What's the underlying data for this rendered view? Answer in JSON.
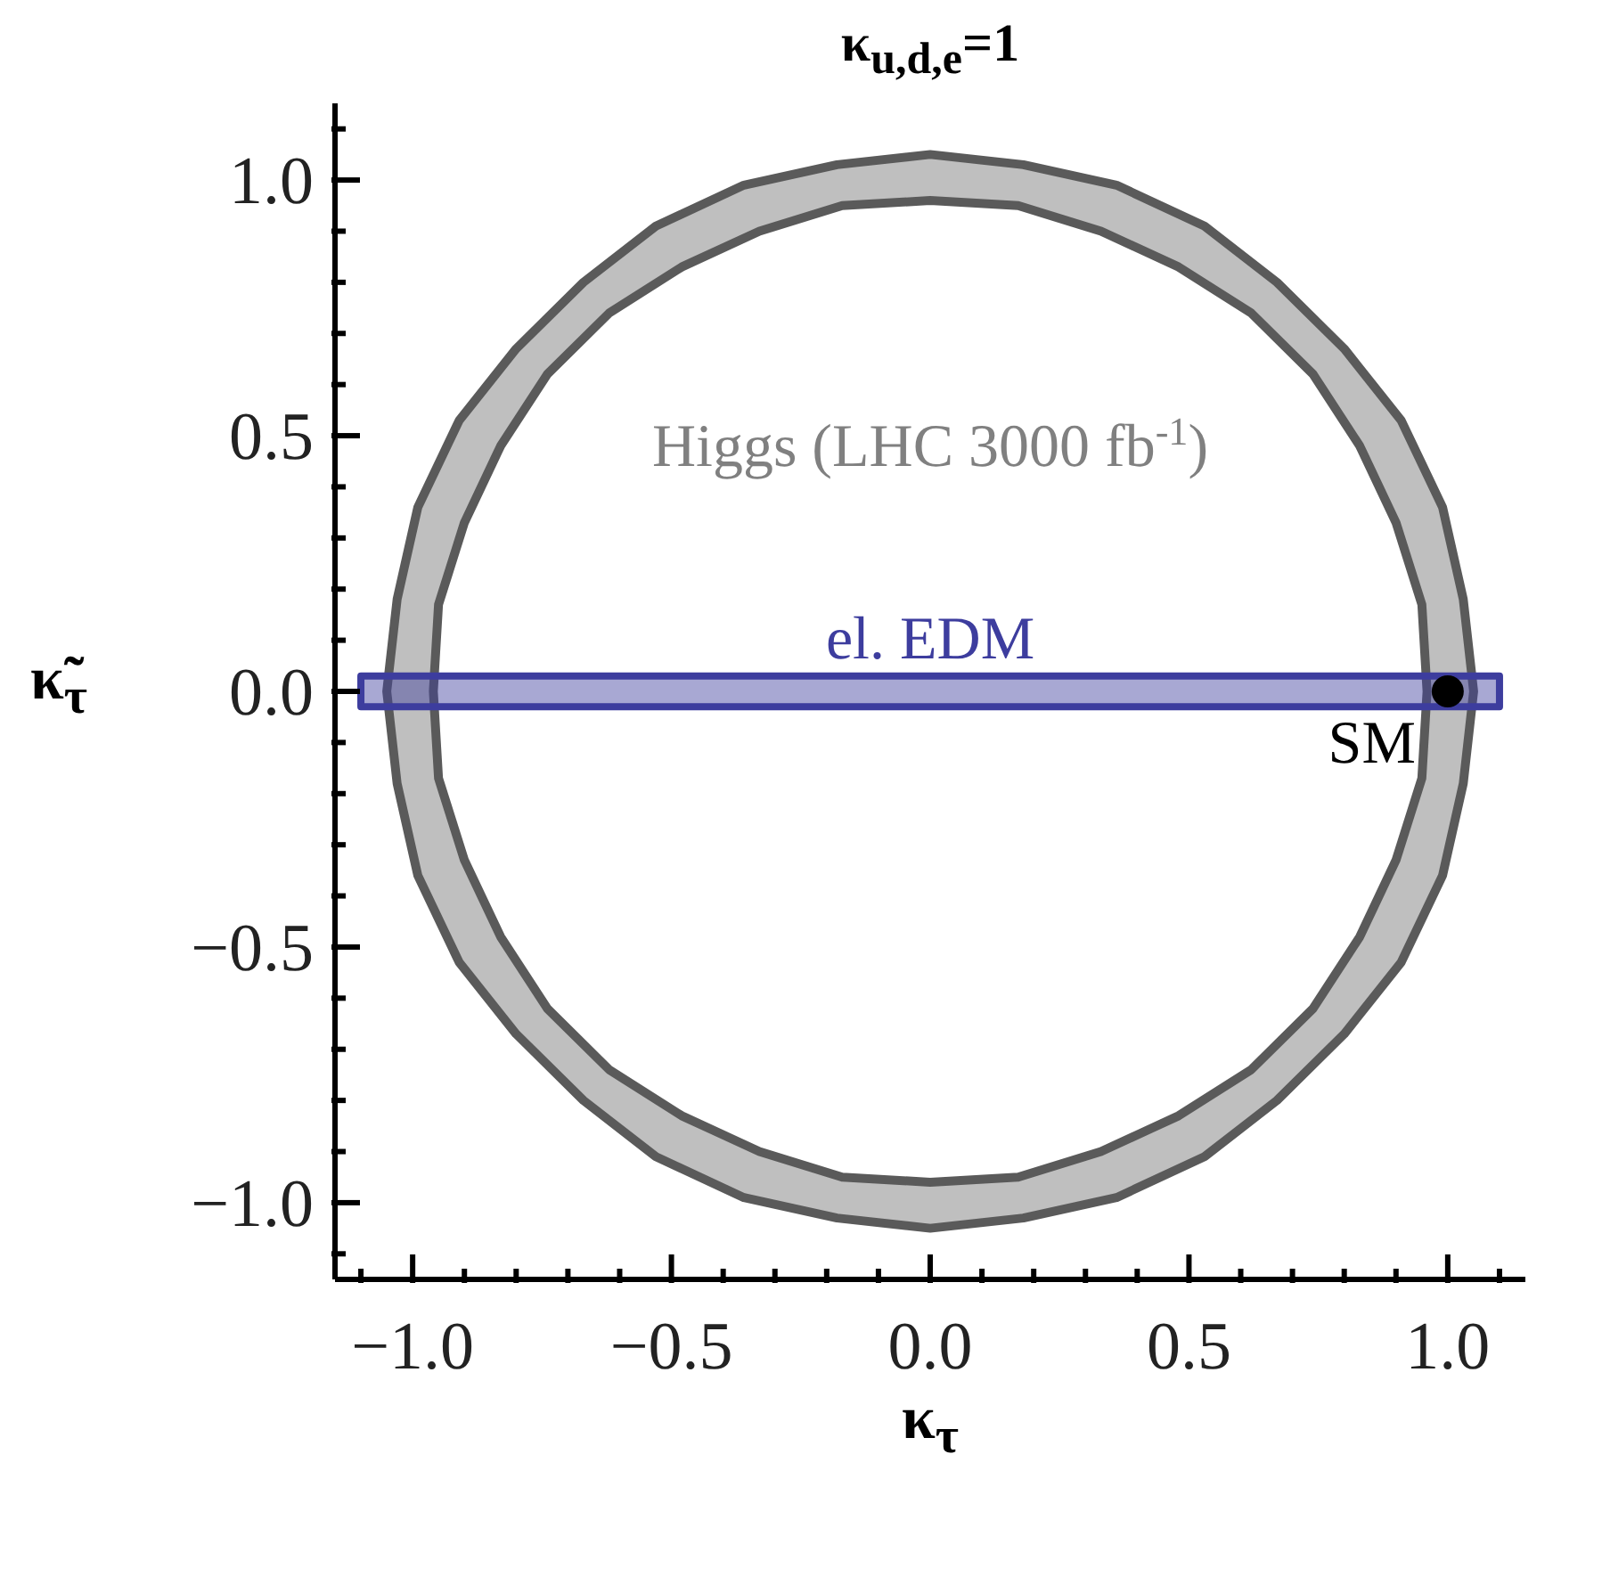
{
  "chart_data": {
    "type": "scatter",
    "title": "κ$_{u,d,e}$=1",
    "xlabel": "κ$_{τ}$",
    "ylabel": "κ̃$_{τ}$",
    "xlim": [
      -1.15,
      1.15
    ],
    "ylim": [
      -1.15,
      1.15
    ],
    "xticks": [
      {
        "value": -1.1,
        "label": null
      },
      {
        "value": -1.0,
        "label": "−1.0"
      },
      {
        "value": -0.9,
        "label": null
      },
      {
        "value": -0.8,
        "label": null
      },
      {
        "value": -0.7,
        "label": null
      },
      {
        "value": -0.6,
        "label": null
      },
      {
        "value": -0.5,
        "label": "−0.5"
      },
      {
        "value": -0.4,
        "label": null
      },
      {
        "value": -0.3,
        "label": null
      },
      {
        "value": -0.2,
        "label": null
      },
      {
        "value": -0.1,
        "label": null
      },
      {
        "value": 0,
        "label": "0.0"
      },
      {
        "value": 0.1,
        "label": null
      },
      {
        "value": 0.2,
        "label": null
      },
      {
        "value": 0.3,
        "label": null
      },
      {
        "value": 0.4,
        "label": null
      },
      {
        "value": 0.5,
        "label": "0.5"
      },
      {
        "value": 0.6,
        "label": null
      },
      {
        "value": 0.7,
        "label": null
      },
      {
        "value": 0.8,
        "label": null
      },
      {
        "value": 0.9,
        "label": null
      },
      {
        "value": 1.0,
        "label": "1.0"
      },
      {
        "value": 1.1,
        "label": null
      }
    ],
    "yticks": [
      {
        "value": -1.1,
        "label": null
      },
      {
        "value": -1.0,
        "label": "−1.0"
      },
      {
        "value": -0.9,
        "label": null
      },
      {
        "value": -0.8,
        "label": null
      },
      {
        "value": -0.7,
        "label": null
      },
      {
        "value": -0.6,
        "label": null
      },
      {
        "value": -0.5,
        "label": "−0.5"
      },
      {
        "value": -0.4,
        "label": null
      },
      {
        "value": -0.3,
        "label": null
      },
      {
        "value": -0.2,
        "label": null
      },
      {
        "value": -0.1,
        "label": null
      },
      {
        "value": 0,
        "label": "0.0"
      },
      {
        "value": 0.1,
        "label": null
      },
      {
        "value": 0.2,
        "label": null
      },
      {
        "value": 0.3,
        "label": null
      },
      {
        "value": 0.4,
        "label": null
      },
      {
        "value": 0.5,
        "label": "0.5"
      },
      {
        "value": 0.6,
        "label": null
      },
      {
        "value": 0.7,
        "label": null
      },
      {
        "value": 0.8,
        "label": null
      },
      {
        "value": 0.9,
        "label": null
      },
      {
        "value": 1.0,
        "label": "1.0"
      },
      {
        "value": 1.1,
        "label": null
      }
    ],
    "series": [
      {
        "type": "area",
        "name": "Higgs (LHC 3000 fb$^{-1}$)",
        "color": "#bfbfbf",
        "x": [
          1.05,
          1.03,
          0.99,
          0.91,
          0.8,
          0.67,
          0.53,
          0.36,
          0.18,
          0,
          -0.18,
          -0.36,
          -0.53,
          -0.67,
          -0.8,
          -0.91,
          -0.99,
          -1.03,
          -1.05,
          -1.03,
          -0.99,
          -0.91,
          -0.8,
          -0.67,
          -0.53,
          -0.36,
          -0.18,
          0,
          0.18,
          0.36,
          0.53,
          0.67,
          0.8,
          0.91,
          0.99,
          1.03,
          1.05,
          null,
          0.96,
          0.95,
          0.9,
          0.83,
          0.74,
          0.62,
          0.48,
          0.33,
          0.17,
          0,
          -0.17,
          -0.33,
          -0.48,
          -0.62,
          -0.74,
          -0.83,
          -0.9,
          -0.95,
          -0.96,
          -0.95,
          -0.9,
          -0.83,
          -0.74,
          -0.62,
          -0.48,
          -0.33,
          -0.17,
          0,
          0.17,
          0.33,
          0.48,
          0.62,
          0.74,
          0.83,
          0.9,
          0.95,
          0.96
        ],
        "values": [
          0,
          0.18,
          0.36,
          0.53,
          0.67,
          0.8,
          0.91,
          0.99,
          1.03,
          1.05,
          1.03,
          0.99,
          0.91,
          0.8,
          0.67,
          0.53,
          0.36,
          0.18,
          0,
          -0.18,
          -0.36,
          -0.53,
          -0.67,
          -0.8,
          -0.91,
          -0.99,
          -1.03,
          -1.05,
          -1.03,
          -0.99,
          -0.91,
          -0.8,
          -0.67,
          -0.53,
          -0.36,
          -0.18,
          0,
          null,
          0,
          0.17,
          0.33,
          0.48,
          0.62,
          0.74,
          0.83,
          0.9,
          0.95,
          0.96,
          0.95,
          0.9,
          0.83,
          0.74,
          0.62,
          0.48,
          0.33,
          0.17,
          0,
          -0.17,
          -0.33,
          -0.48,
          -0.62,
          -0.74,
          -0.83,
          -0.9,
          -0.95,
          -0.96,
          -0.95,
          -0.9,
          -0.83,
          -0.74,
          -0.62,
          -0.48,
          -0.33,
          -0.17,
          0
        ]
      },
      {
        "type": "area",
        "name": "el. EDM",
        "color": "#3d3d9e",
        "x": [
          -1.1,
          1.1,
          1.1,
          -1.1,
          -1.1
        ],
        "values": [
          -0.03,
          -0.03,
          0.03,
          0.03,
          -0.03
        ]
      },
      {
        "name": "SM",
        "color": "#000000",
        "x": [
          1.0
        ],
        "values": [
          0
        ]
      }
    ]
  }
}
